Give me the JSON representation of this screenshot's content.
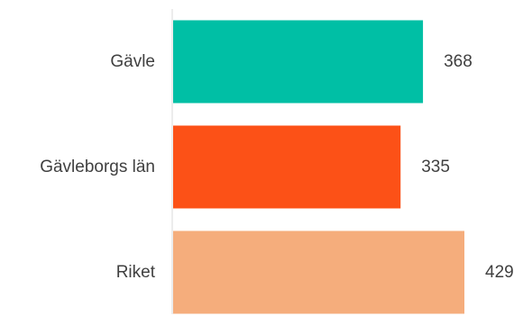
{
  "chart_data": {
    "type": "bar",
    "orientation": "horizontal",
    "categories": [
      "Gävle",
      "Gävleborgs län",
      "Riket"
    ],
    "values": [
      368,
      335,
      429
    ],
    "value_labels": [
      "368",
      "335",
      "429"
    ],
    "colors": [
      "#00bfa5",
      "#fc5117",
      "#f5ad7c"
    ],
    "title": "",
    "xlabel": "",
    "ylabel": "",
    "xlim": [
      0,
      429
    ],
    "grid": false,
    "legend": "none",
    "axis_color": "#d9d9d9",
    "text_color": "#404040"
  }
}
